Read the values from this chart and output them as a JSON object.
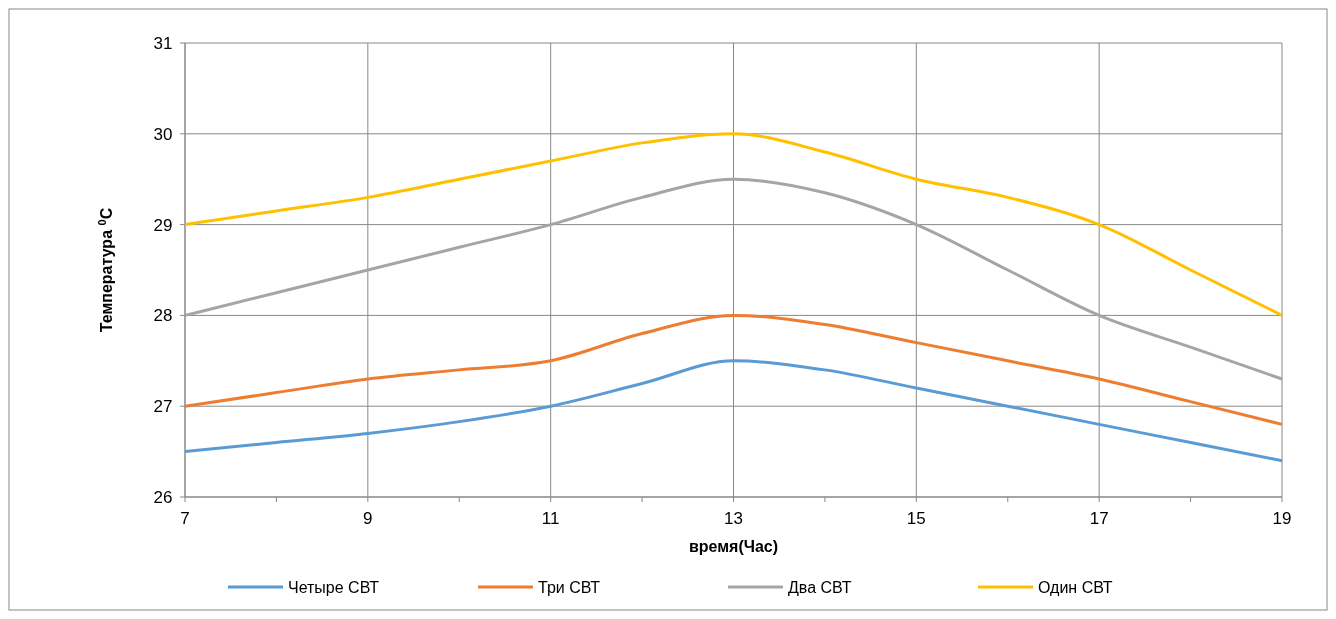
{
  "chart_data": {
    "type": "line",
    "xlabel": "время(Час)",
    "ylabel": "Температура $^{0}$C",
    "x": [
      7,
      8,
      9,
      10,
      11,
      12,
      13,
      14,
      15,
      16,
      17,
      18,
      19
    ],
    "series": [
      {
        "name": "Четыре СВТ",
        "color": "#5b9bd5",
        "values": [
          26.5,
          26.6,
          26.7,
          26.83,
          27.0,
          27.25,
          27.5,
          27.4,
          27.2,
          27.0,
          26.8,
          26.6,
          26.4
        ]
      },
      {
        "name": "Три СВТ",
        "color": "#ed7d31",
        "values": [
          27.0,
          27.15,
          27.3,
          27.4,
          27.5,
          27.8,
          28.0,
          27.9,
          27.7,
          27.5,
          27.3,
          27.05,
          26.8
        ]
      },
      {
        "name": "Два СВТ",
        "color": "#a5a5a5",
        "values": [
          28.0,
          28.25,
          28.5,
          28.75,
          29.0,
          29.3,
          29.5,
          29.35,
          29.0,
          28.5,
          28.0,
          27.65,
          27.3
        ]
      },
      {
        "name": "Один СВТ",
        "color": "#ffc000",
        "values": [
          29.0,
          29.15,
          29.3,
          29.5,
          29.7,
          29.9,
          30.0,
          29.8,
          29.5,
          29.3,
          29.0,
          28.5,
          28.0
        ]
      }
    ],
    "xlim": [
      7,
      19
    ],
    "ylim": [
      26,
      31
    ],
    "xticks": [
      7,
      {
        "value": 8,
        "label": null
      },
      9,
      {
        "value": 10,
        "label": null
      },
      11,
      {
        "value": 12,
        "label": null
      },
      13,
      {
        "value": 14,
        "label": null
      },
      15,
      {
        "value": 16,
        "label": null
      },
      17,
      {
        "value": 18,
        "label": null
      },
      19
    ],
    "yticks": [
      26,
      27,
      28,
      29,
      30,
      31
    ],
    "grid": true,
    "legend": "bottom",
    "marker": "none",
    "line_style": "solid"
  }
}
